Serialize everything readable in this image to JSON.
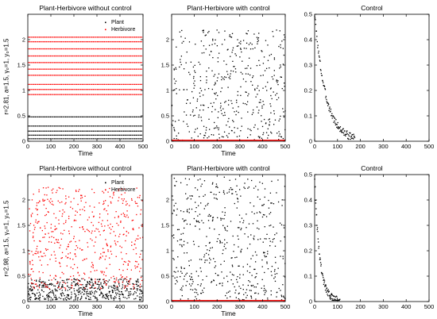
{
  "figure": {
    "row_labels": [
      "r=2.81, a=1.5, γ₀=1, y₀=1.5",
      "r=2.98, a=1.5, γ₀=1, y₀=1.5"
    ]
  },
  "colors": {
    "plant": "#000000",
    "herbivore": "#ff0000",
    "axis": "#000000"
  },
  "chart_data": [
    {
      "id": "r1c1",
      "type": "scatter",
      "title": "Plant-Herbivore without control",
      "xlabel": "Time",
      "ylabel": "",
      "xlim": [
        0,
        500
      ],
      "ylim": [
        0,
        2.5
      ],
      "xticks": [
        0,
        100,
        200,
        300,
        400,
        500
      ],
      "yticks": [
        0,
        0.5,
        1,
        1.5,
        2
      ],
      "grid": false,
      "legend": {
        "position": "top-right",
        "entries": [
          "Plant",
          "Herbivore"
        ]
      },
      "series": [
        {
          "name": "Plant",
          "pattern": "bands",
          "levels": [
            0.05,
            0.12,
            0.2,
            0.3,
            0.48
          ],
          "step": 6
        },
        {
          "name": "Herbivore",
          "pattern": "bands",
          "levels": [
            0.92,
            1.02,
            1.12,
            1.3,
            1.42,
            1.55,
            1.68,
            1.82,
            1.96,
            2.05
          ],
          "step": 6
        }
      ]
    },
    {
      "id": "r1c2",
      "type": "scatter",
      "title": "Plant-Herbivore with control",
      "xlabel": "Time",
      "ylabel": "",
      "xlim": [
        0,
        500
      ],
      "ylim": [
        0,
        2.5
      ],
      "xticks": [
        0,
        100,
        200,
        300,
        400,
        500
      ],
      "yticks": [
        0,
        0.5,
        1,
        1.5,
        2
      ],
      "grid": false,
      "series": [
        {
          "name": "Plant",
          "pattern": "chaotic",
          "range": [
            0.02,
            2.2
          ],
          "count": 470,
          "seed": 11
        },
        {
          "name": "Herbivore",
          "pattern": "line",
          "y": 0.02,
          "step": 3
        }
      ]
    },
    {
      "id": "r1c3",
      "type": "scatter",
      "title": "Control",
      "xlabel": "",
      "ylabel": "",
      "xlim": [
        0,
        500
      ],
      "ylim": [
        0,
        0.5
      ],
      "xticks": [
        0,
        100,
        200,
        300,
        400,
        500
      ],
      "yticks": [
        0,
        0.1,
        0.2,
        0.3,
        0.4,
        0.5
      ],
      "grid": false,
      "series": [
        {
          "name": "Control",
          "pattern": "decay",
          "start": 0.5,
          "tau": 48,
          "end_x": 175,
          "count": 110,
          "seed": 3
        }
      ]
    },
    {
      "id": "r2c1",
      "type": "scatter",
      "title": "Plant-Herbivore without control",
      "xlabel": "Time",
      "ylabel": "",
      "xlim": [
        0,
        500
      ],
      "ylim": [
        0,
        2.5
      ],
      "xticks": [
        0,
        100,
        200,
        300,
        400,
        500
      ],
      "yticks": [
        0,
        0.5,
        1,
        1.5,
        2
      ],
      "grid": false,
      "legend": {
        "position": "top-right",
        "entries": [
          "Plant",
          "Herbivore"
        ]
      },
      "series": [
        {
          "name": "Plant",
          "pattern": "chaotic",
          "range": [
            0.03,
            0.45
          ],
          "count": 520,
          "seed": 21
        },
        {
          "name": "Herbivore",
          "pattern": "chaotic",
          "range": [
            0.25,
            2.25
          ],
          "count": 560,
          "seed": 37
        }
      ]
    },
    {
      "id": "r2c2",
      "type": "scatter",
      "title": "Plant-Herbivore with control",
      "xlabel": "Time",
      "ylabel": "",
      "xlim": [
        0,
        500
      ],
      "ylim": [
        0,
        2.5
      ],
      "xticks": [
        0,
        100,
        200,
        300,
        400,
        500
      ],
      "yticks": [
        0,
        0.5,
        1,
        1.5,
        2
      ],
      "grid": false,
      "series": [
        {
          "name": "Plant",
          "pattern": "chaotic",
          "range": [
            0.02,
            2.45
          ],
          "count": 520,
          "seed": 53
        },
        {
          "name": "Herbivore",
          "pattern": "line",
          "y": 0.02,
          "step": 3
        }
      ]
    },
    {
      "id": "r2c3",
      "type": "scatter",
      "title": "Control",
      "xlabel": "",
      "ylabel": "",
      "xlim": [
        0,
        500
      ],
      "ylim": [
        0,
        0.5
      ],
      "xticks": [
        0,
        100,
        200,
        300,
        400,
        500
      ],
      "yticks": [
        0,
        0.1,
        0.2,
        0.3,
        0.4,
        0.5
      ],
      "grid": false,
      "series": [
        {
          "name": "Control",
          "pattern": "decay",
          "start": 0.49,
          "tau": 22,
          "end_x": 110,
          "count": 90,
          "seed": 9
        }
      ]
    }
  ]
}
